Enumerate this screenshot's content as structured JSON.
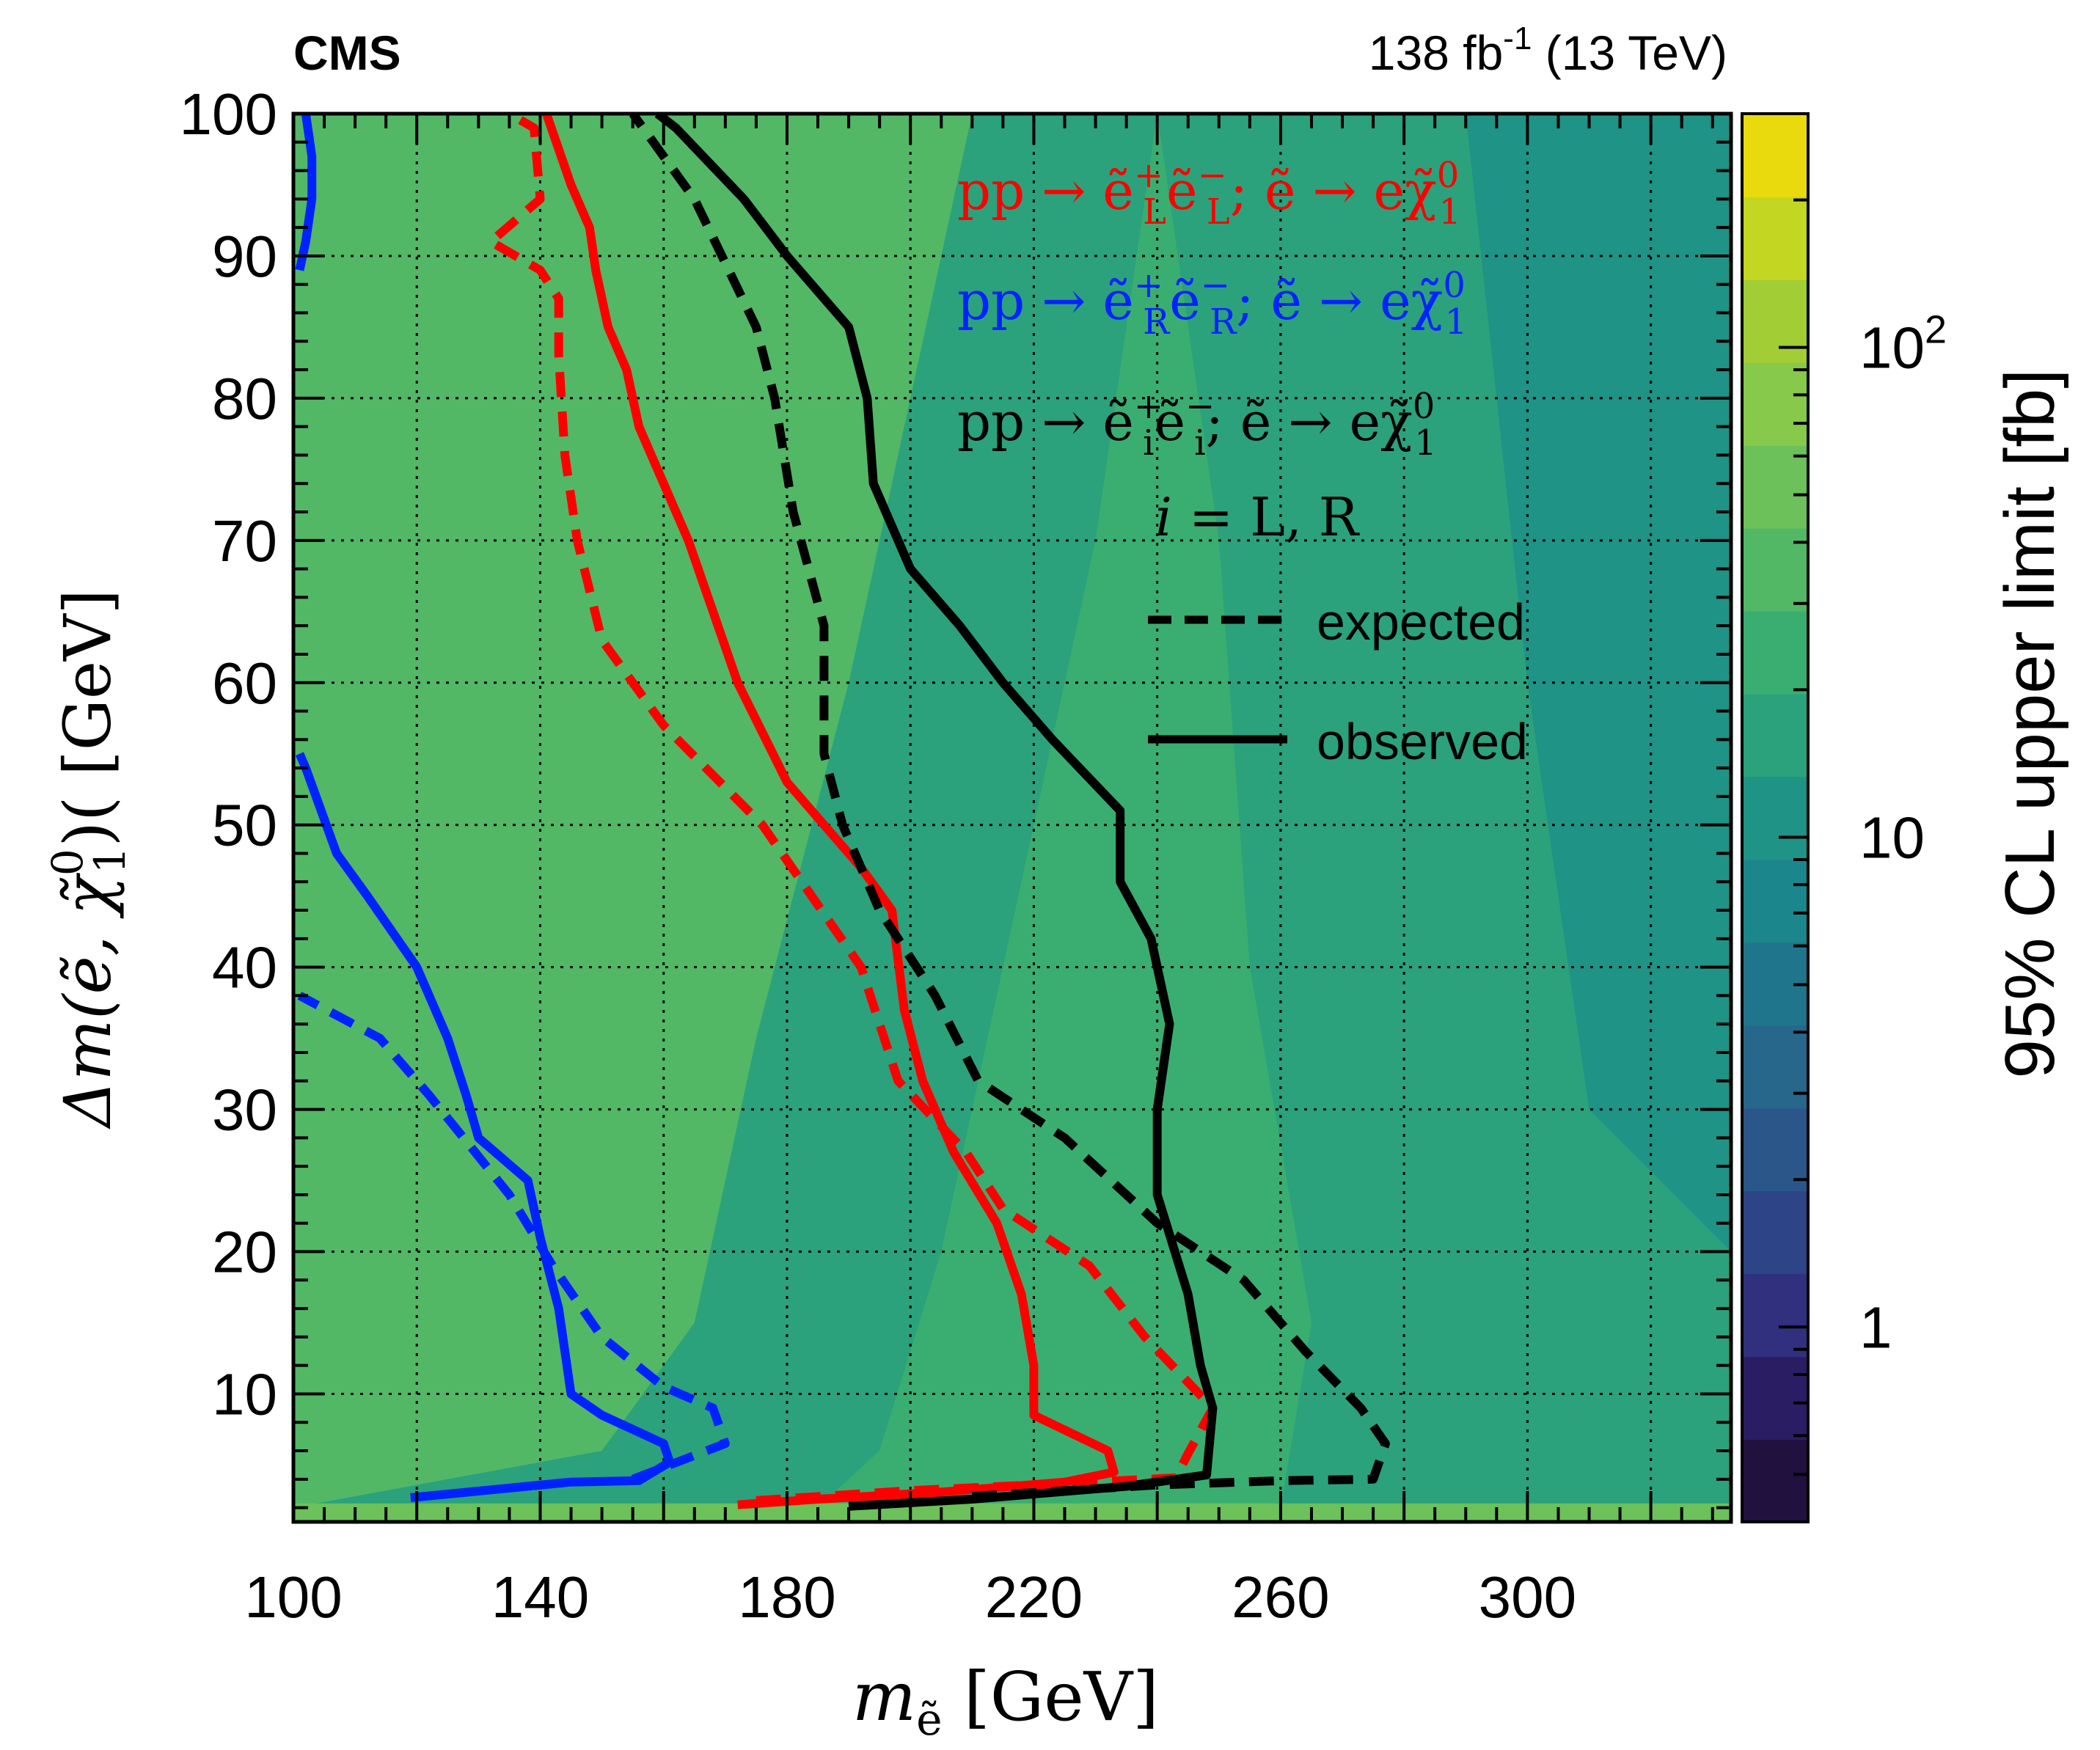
{
  "header": {
    "experiment": "CMS",
    "lumi_prefix": "138 fb",
    "lumi_exp": "-1",
    "lumi_suffix": " (13 TeV)"
  },
  "colorbar": {
    "label": "95% CL upper limit [fb]",
    "scale": "log",
    "range": [
      0.4,
      300
    ],
    "tick_labels": [
      {
        "value": 1,
        "text": "1"
      },
      {
        "value": 10,
        "text": "10"
      },
      {
        "value": 100,
        "text": "10",
        "exp": "2"
      }
    ],
    "palette": [
      "#21113f",
      "#2b1d64",
      "#30307e",
      "#2d4487",
      "#2b5689",
      "#27678b",
      "#1f768c",
      "#1b868b",
      "#1e9386",
      "#2ba27c",
      "#3aae71",
      "#52b866",
      "#6cc15a",
      "#87c94a",
      "#a2cd35",
      "#c3d621",
      "#e8da0c"
    ]
  },
  "legend": {
    "lines": [
      {
        "text": "pp → ẽ",
        "sup": "+",
        "sub": "L",
        "text2": "ẽ",
        "sup2": "−",
        "sub2": "L",
        "text3": "; ẽ → eχ̃",
        "sup3": "0",
        "sub3": "1",
        "color": "#ff0000"
      },
      {
        "text": "pp → ẽ",
        "sup": "+",
        "sub": "R",
        "text2": "ẽ",
        "sup2": "−",
        "sub2": "R",
        "text3": "; ẽ → eχ̃",
        "sup3": "0",
        "sub3": "1",
        "color": "#0022ff"
      },
      {
        "text": "pp → ẽ",
        "sup": "+",
        "sub": "i",
        "text2": "ẽ",
        "sup2": "−",
        "sub2": "i",
        "text3": "; ẽ → eχ̃",
        "sup3": "0",
        "sub3": "1",
        "color": "#000000"
      }
    ],
    "index_line": "i = L, R",
    "expected_label": "expected",
    "observed_label": "observed"
  },
  "chart_data": {
    "type": "heatmap",
    "xlabel": "m",
    "xlabel_sub": "ẽ",
    "xlabel_unit": " [GeV]",
    "ylabel": "Δm(ẽ, χ̃",
    "ylabel_sup": "0",
    "ylabel_sub": "1",
    "ylabel_unit": ")( [GeV]",
    "xlim": [
      100,
      333
    ],
    "ylim": [
      1,
      100
    ],
    "x_ticks": [
      100,
      140,
      180,
      220,
      260,
      300
    ],
    "y_ticks": [
      10,
      20,
      30,
      40,
      50,
      60,
      70,
      80,
      90,
      100
    ],
    "grid": true,
    "z_scale": "log",
    "z_map": {
      "description_note": "approximate observed 95% CL upper limit on cross section [fb] vs (m, dm)",
      "regions": [
        {
          "level": 13,
          "points": [
            [
              100,
              100
            ],
            [
              120,
              100
            ],
            [
              130,
              80
            ],
            [
              120,
              55
            ],
            [
              110,
              40
            ],
            [
              100,
              38
            ]
          ]
        },
        {
          "level": 12,
          "points": [
            [
              100,
              100
            ],
            [
              175,
              100
            ],
            [
              160,
              70
            ],
            [
              150,
              45
            ],
            [
              140,
              25
            ],
            [
              125,
              10
            ],
            [
              100,
              5
            ]
          ]
        },
        {
          "level": 11,
          "points": [
            [
              100,
              100
            ],
            [
              210,
              100
            ],
            [
              190,
              60
            ],
            [
              175,
              35
            ],
            [
              165,
              15
            ],
            [
              150,
              6
            ],
            [
              100,
              2
            ]
          ]
        },
        {
          "level": 10,
          "points": [
            [
              200,
              100
            ],
            [
              240,
              100
            ],
            [
              230,
              70
            ],
            [
              215,
              40
            ],
            [
              205,
              20
            ],
            [
              195,
              6
            ],
            [
              185,
              2
            ],
            [
              333,
              2
            ],
            [
              333,
              100
            ]
          ]
        },
        {
          "level": 9,
          "points": [
            [
              240,
              100
            ],
            [
              333,
              100
            ],
            [
              333,
              2
            ],
            [
              260,
              2
            ],
            [
              265,
              15
            ],
            [
              255,
              40
            ],
            [
              250,
              70
            ]
          ]
        },
        {
          "level": 8,
          "points": [
            [
              290,
              100
            ],
            [
              333,
              100
            ],
            [
              333,
              20
            ],
            [
              310,
              30
            ],
            [
              300,
              60
            ]
          ]
        }
      ],
      "bottom_band_level": 12
    },
    "series": [
      {
        "name": "",
        "color": "#ff0000",
        "style": "solid",
        "points": [
          [
            172,
            2.2
          ],
          [
            185,
            2.6
          ],
          [
            205,
            3.1
          ],
          [
            225,
            3.8
          ],
          [
            233,
            4.5
          ],
          [
            232,
            6
          ],
          [
            220,
            8.5
          ],
          [
            220,
            12
          ],
          [
            218,
            17
          ],
          [
            214,
            22
          ],
          [
            207,
            27
          ],
          [
            202,
            32
          ],
          [
            199,
            37
          ],
          [
            197,
            44
          ],
          [
            192,
            47
          ],
          [
            180,
            53
          ],
          [
            172,
            60
          ],
          [
            164,
            70
          ],
          [
            156,
            78
          ],
          [
            154,
            82
          ],
          [
            151,
            85
          ],
          [
            149,
            89
          ],
          [
            148,
            92
          ],
          [
            145,
            95
          ],
          [
            141,
            100
          ]
        ]
      },
      {
        "name": "",
        "color": "#ff0000",
        "style": "dashed",
        "points": [
          [
            175,
            2.5
          ],
          [
            200,
            3.2
          ],
          [
            225,
            3.7
          ],
          [
            243,
            4.1
          ],
          [
            245,
            5.8
          ],
          [
            249,
            9
          ],
          [
            238,
            14
          ],
          [
            229,
            19
          ],
          [
            215,
            23
          ],
          [
            209,
            27
          ],
          [
            198,
            32
          ],
          [
            192,
            40
          ],
          [
            184,
            45
          ],
          [
            176,
            50
          ],
          [
            160,
            57
          ],
          [
            150,
            63
          ],
          [
            146,
            70
          ],
          [
            144,
            76
          ],
          [
            143,
            83
          ],
          [
            143,
            87
          ],
          [
            140,
            89
          ],
          [
            132,
            91
          ],
          [
            140,
            94
          ],
          [
            139,
            99
          ],
          [
            135,
            100
          ]
        ]
      },
      {
        "name": "",
        "color": "#0022ff",
        "style": "solid",
        "points": [
          [
            119,
            2.7
          ],
          [
            145,
            3.8
          ],
          [
            156,
            3.9
          ],
          [
            161,
            5.2
          ],
          [
            160,
            6.5
          ],
          [
            150,
            8.5
          ],
          [
            145,
            10
          ],
          [
            143,
            16
          ],
          [
            140,
            21
          ],
          [
            138,
            25
          ],
          [
            130,
            28
          ],
          [
            128,
            31
          ],
          [
            125,
            35
          ],
          [
            120,
            40
          ],
          [
            112,
            45
          ],
          [
            107,
            48
          ],
          [
            102,
            54
          ],
          [
            101,
            55
          ]
        ]
      },
      {
        "name": "",
        "color": "#0022ff",
        "style": "dashed",
        "points": [
          [
            155,
            4
          ],
          [
            170,
            6.5
          ],
          [
            168,
            9
          ],
          [
            160,
            10.5
          ],
          [
            150,
            14
          ],
          [
            142,
            19
          ],
          [
            135,
            24
          ],
          [
            122,
            31
          ],
          [
            114,
            35
          ],
          [
            101,
            38
          ]
        ]
      },
      {
        "name": "",
        "color": "#0022ff",
        "style": "solid",
        "points": [
          [
            101,
            89
          ],
          [
            102,
            91
          ],
          [
            103,
            94
          ],
          [
            103,
            97
          ],
          [
            102,
            100
          ]
        ]
      },
      {
        "name": "",
        "color": "#000000",
        "style": "solid",
        "points": [
          [
            190,
            2.1
          ],
          [
            210,
            2.6
          ],
          [
            235,
            3.5
          ],
          [
            248,
            4.3
          ],
          [
            249,
            9
          ],
          [
            247,
            12
          ],
          [
            245,
            17
          ],
          [
            240,
            24
          ],
          [
            240,
            30
          ],
          [
            242,
            36
          ],
          [
            239,
            42
          ],
          [
            234,
            46
          ],
          [
            234,
            51
          ],
          [
            223,
            56
          ],
          [
            215,
            60
          ],
          [
            208,
            64
          ],
          [
            200,
            68
          ],
          [
            194,
            74
          ],
          [
            193,
            80
          ],
          [
            190,
            85
          ],
          [
            180,
            90
          ],
          [
            173,
            94
          ],
          [
            162,
            99
          ],
          [
            159,
            100
          ]
        ]
      },
      {
        "name": "",
        "color": "#000000",
        "style": "dashed",
        "points": [
          [
            210,
            2.8
          ],
          [
            240,
            3.6
          ],
          [
            260,
            3.9
          ],
          [
            275,
            4
          ],
          [
            277,
            6.5
          ],
          [
            273,
            9
          ],
          [
            264,
            13
          ],
          [
            254,
            18
          ],
          [
            240,
            22
          ],
          [
            225,
            28
          ],
          [
            211,
            32
          ],
          [
            204,
            38
          ],
          [
            195,
            44
          ],
          [
            189,
            50
          ],
          [
            186,
            55
          ],
          [
            186,
            64
          ],
          [
            181,
            72
          ],
          [
            178,
            80
          ],
          [
            175,
            85
          ],
          [
            165,
            94
          ],
          [
            155,
            100
          ]
        ]
      }
    ]
  }
}
